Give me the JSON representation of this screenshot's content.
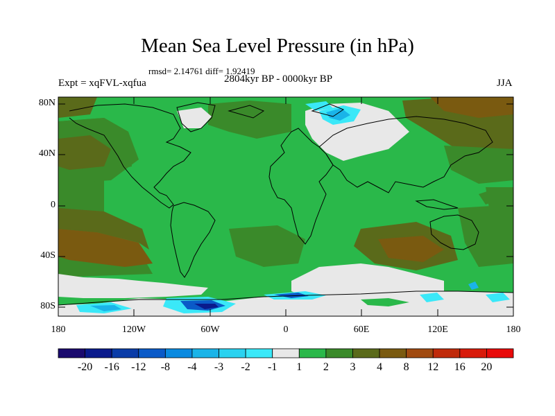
{
  "title": "Mean Sea Level Pressure (in hPa)",
  "stats": "rmsd= 2.14761 diff= 1.92419",
  "experiment": "Expt = xqFVL-xqfua",
  "period": "2804kyr BP - 0000kyr BP",
  "season": "JJA",
  "lat_labels": [
    "80N",
    "40N",
    "0",
    "40S",
    "80S"
  ],
  "lon_labels": [
    "180",
    "120W",
    "60W",
    "0",
    "60E",
    "120E",
    "180"
  ],
  "colorbar": {
    "labels": [
      "-20",
      "-16",
      "-12",
      "-8",
      "-4",
      "-3",
      "-2",
      "-1",
      "1",
      "2",
      "3",
      "4",
      "8",
      "12",
      "16",
      "20"
    ],
    "colors": [
      "#1a0a6e",
      "#0a1a8c",
      "#0a3ca8",
      "#0a5ac8",
      "#0a8ae0",
      "#1ab4e8",
      "#2ad2f0",
      "#3ae8f8",
      "#e8e8e8",
      "#2ab84a",
      "#3a8a2a",
      "#5a6a1a",
      "#7a5a10",
      "#a04a10",
      "#c02a0a",
      "#d81a0a",
      "#e80a0a"
    ]
  },
  "map_colors": {
    "positive_small": "#2ab84a",
    "positive_mid": "#3a8a2a",
    "positive_high": "#5a6a1a",
    "positive_strong": "#7a5a10",
    "near_zero": "#e8e8e8",
    "negative_small": "#3ae8f8",
    "negative_mid": "#1ab4e8",
    "negative_strong": "#0a5ac8",
    "negative_deep": "#0a1a8c"
  }
}
